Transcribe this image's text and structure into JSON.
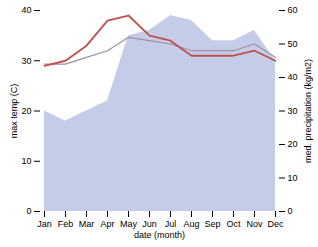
{
  "chart_data": {
    "type": "line",
    "categories": [
      "Jan",
      "Feb",
      "Mar",
      "Apr",
      "May",
      "Jun",
      "Jul",
      "Aug",
      "Sep",
      "Oct",
      "Nov",
      "Dec"
    ],
    "series": [
      {
        "type": "area",
        "axis": "y2",
        "color": "#c5cce8",
        "values": [
          30,
          27,
          30,
          33,
          52.5,
          54,
          58.5,
          57,
          51,
          51,
          54,
          45
        ]
      },
      {
        "type": "line",
        "axis": "y2",
        "color": "#9e8fa0",
        "values": [
          44,
          44,
          46,
          48,
          52,
          51,
          50,
          48,
          48,
          48,
          50,
          46
        ]
      },
      {
        "type": "line",
        "color": "#c0504d",
        "values": [
          29,
          30,
          33,
          38,
          39,
          35,
          34,
          31,
          31,
          31,
          32,
          30
        ]
      }
    ],
    "xlabel": "date (month)",
    "ylabel": "max temp (C)",
    "y2label": "med. precipitation (kg/m2)",
    "ylim": [
      0,
      40
    ],
    "yticks": [
      0,
      10,
      20,
      30,
      40
    ],
    "y2lim": [
      0,
      60
    ],
    "y2ticks": [
      0,
      10,
      20,
      30,
      40,
      50,
      60
    ],
    "grid": false
  }
}
